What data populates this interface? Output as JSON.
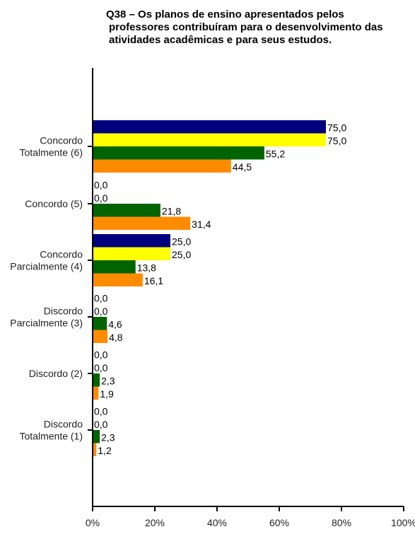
{
  "chart_data": {
    "type": "bar",
    "orientation": "horizontal",
    "title_lines": [
      "Q38 – Os planos de ensino apresentados pelos",
      "professores contribuíram para o desenvolvimento das",
      "atividades acadêmicas e para seus estudos."
    ],
    "categories": [
      [
        "Concordo",
        "Totalmente (6)"
      ],
      [
        "Concordo (5)"
      ],
      [
        "Concordo",
        "Parcialmente (4)"
      ],
      [
        "Discordo",
        "Parcialmente (3)"
      ],
      [
        "Discordo (2)"
      ],
      [
        "Discordo",
        "Totalmente (1)"
      ]
    ],
    "series": [
      {
        "color": "#00007f",
        "values": [
          75.0,
          0.0,
          25.0,
          0.0,
          0.0,
          0.0
        ]
      },
      {
        "color": "#ffff00",
        "values": [
          75.0,
          0.0,
          25.0,
          0.0,
          0.0,
          0.0
        ]
      },
      {
        "color": "#006400",
        "values": [
          55.2,
          21.8,
          13.8,
          4.6,
          2.3,
          2.3
        ]
      },
      {
        "color": "#ff8c00",
        "values": [
          44.5,
          31.4,
          16.1,
          4.8,
          1.9,
          1.2
        ]
      }
    ],
    "value_labels": [
      [
        "75,0",
        "0,0",
        "25,0",
        "0,0",
        "0,0",
        "0,0"
      ],
      [
        "75,0",
        "0,0",
        "25,0",
        "0,0",
        "0,0",
        "0,0"
      ],
      [
        "55,2",
        "21,8",
        "13,8",
        "4,6",
        "2,3",
        "2,3"
      ],
      [
        "44,5",
        "31,4",
        "16,1",
        "4,8",
        "1,9",
        "1,2"
      ]
    ],
    "x_ticks": [
      "0%",
      "20%",
      "40%",
      "60%",
      "80%",
      "100%"
    ],
    "xlim": [
      0,
      100
    ],
    "grid": false,
    "legend": "none"
  }
}
